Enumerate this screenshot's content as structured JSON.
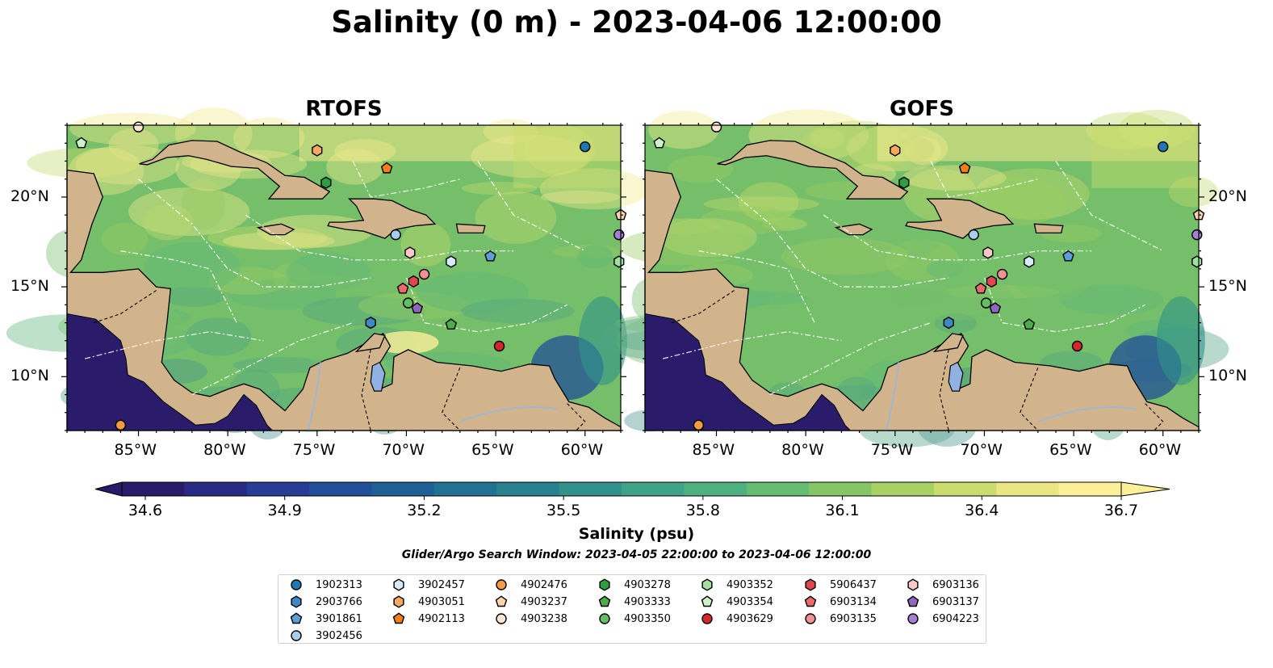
{
  "title": "Salinity (0 m) - 2023-04-06 12:00:00",
  "panels": [
    {
      "title": "RTOFS",
      "palette_shift": 0.15
    },
    {
      "title": "GOFS",
      "palette_shift": 0.0
    }
  ],
  "colors": {
    "land": "#d2b48c",
    "deep": "#2b1c6b",
    "water_shades": [
      "#3e7f8e",
      "#47938b",
      "#4fa583",
      "#5db57a",
      "#76bf6a",
      "#9ccc62",
      "#c6dc6c",
      "#f3e98c"
    ],
    "lake": "#8fb2e3",
    "river": "#9fb6cf"
  },
  "chart_data": {
    "type": "heatmap",
    "colorbar": {
      "label": "Salinity (psu)",
      "min": 34.6,
      "max": 36.7,
      "ticks": [
        "34.6",
        "34.9",
        "35.2",
        "35.5",
        "35.8",
        "36.1",
        "36.4",
        "36.7"
      ],
      "extend": "both",
      "colors": [
        "#2a1a6a",
        "#2a2a85",
        "#263c95",
        "#214f98",
        "#1f6197",
        "#217292",
        "#28828e",
        "#31928b",
        "#3ea287",
        "#4fb07f",
        "#66bb73",
        "#86c566",
        "#a9d063",
        "#cbdb6d",
        "#eae684",
        "#fbef98"
      ]
    },
    "x_axis": {
      "ticks": [
        "85°W",
        "80°W",
        "75°W",
        "70°W",
        "65°W",
        "60°W"
      ],
      "values": [
        -85,
        -80,
        -75,
        -70,
        -65,
        -60
      ],
      "range": [
        -89,
        -58
      ]
    },
    "y_axis": {
      "ticks": [
        "20°N",
        "15°N",
        "10°N"
      ],
      "values": [
        20,
        15,
        10
      ],
      "range": [
        7,
        24
      ]
    },
    "search_window": "Glider/Argo Search Window: 2023-04-05 22:00:00 to 2023-04-06 12:00:00",
    "floats": [
      {
        "id": "1902313",
        "marker": "circle",
        "color": "#1f77b4",
        "lon": -60.0,
        "lat": 22.8
      },
      {
        "id": "2903766",
        "marker": "hexagon",
        "color": "#3f87c5",
        "lon": -72.0,
        "lat": 13.0
      },
      {
        "id": "3901861",
        "marker": "pentagon",
        "color": "#5a9fd6",
        "lon": -65.3,
        "lat": 16.7
      },
      {
        "id": "3902456",
        "marker": "circle",
        "color": "#a6cef0",
        "lon": -70.6,
        "lat": 17.9
      },
      {
        "id": "3902457",
        "marker": "hexagon",
        "color": "#d6eaf9",
        "lon": -67.5,
        "lat": 16.4
      },
      {
        "id": "4903051",
        "marker": "hexagon",
        "color": "#f4a965",
        "lon": -75.0,
        "lat": 22.6
      },
      {
        "id": "4902113",
        "marker": "pentagon",
        "color": "#f47f14",
        "lon": -71.1,
        "lat": 21.6
      },
      {
        "id": "4902476",
        "marker": "circle",
        "color": "#f59a45",
        "lon": -86.0,
        "lat": 7.3
      },
      {
        "id": "4903237",
        "marker": "pentagon",
        "color": "#fbd3ad",
        "lon": -58.0,
        "lat": 19.0
      },
      {
        "id": "4903238",
        "marker": "circle",
        "color": "#fde6d3",
        "lon": -85.0,
        "lat": 23.9
      },
      {
        "id": "4903278",
        "marker": "hexagon",
        "color": "#2e9e3e",
        "lon": -74.5,
        "lat": 20.8
      },
      {
        "id": "4903333",
        "marker": "pentagon",
        "color": "#4cae4a",
        "lon": -67.5,
        "lat": 12.9
      },
      {
        "id": "4903350",
        "marker": "circle",
        "color": "#62c062",
        "lon": -69.9,
        "lat": 14.1
      },
      {
        "id": "4903352",
        "marker": "hexagon",
        "color": "#a1e0a1",
        "lon": -58.1,
        "lat": 16.4
      },
      {
        "id": "4903354",
        "marker": "pentagon",
        "color": "#cdf2c8",
        "lon": -88.2,
        "lat": 23.0
      },
      {
        "id": "4903629",
        "marker": "circle",
        "color": "#d62728",
        "lon": -64.8,
        "lat": 11.7
      },
      {
        "id": "5906437",
        "marker": "hexagon",
        "color": "#e0474a",
        "lon": -69.6,
        "lat": 15.3
      },
      {
        "id": "6903134",
        "marker": "pentagon",
        "color": "#ee6a6a",
        "lon": -70.2,
        "lat": 14.9
      },
      {
        "id": "6903135",
        "marker": "circle",
        "color": "#f29191",
        "lon": -69.0,
        "lat": 15.7
      },
      {
        "id": "6903136",
        "marker": "hexagon",
        "color": "#fbc8c8",
        "lon": -69.8,
        "lat": 16.9
      },
      {
        "id": "6903137",
        "marker": "pentagon",
        "color": "#8f67bf",
        "lon": -69.4,
        "lat": 13.8
      },
      {
        "id": "6904223",
        "marker": "circle",
        "color": "#a57fd1",
        "lon": -58.1,
        "lat": 17.9
      }
    ]
  }
}
